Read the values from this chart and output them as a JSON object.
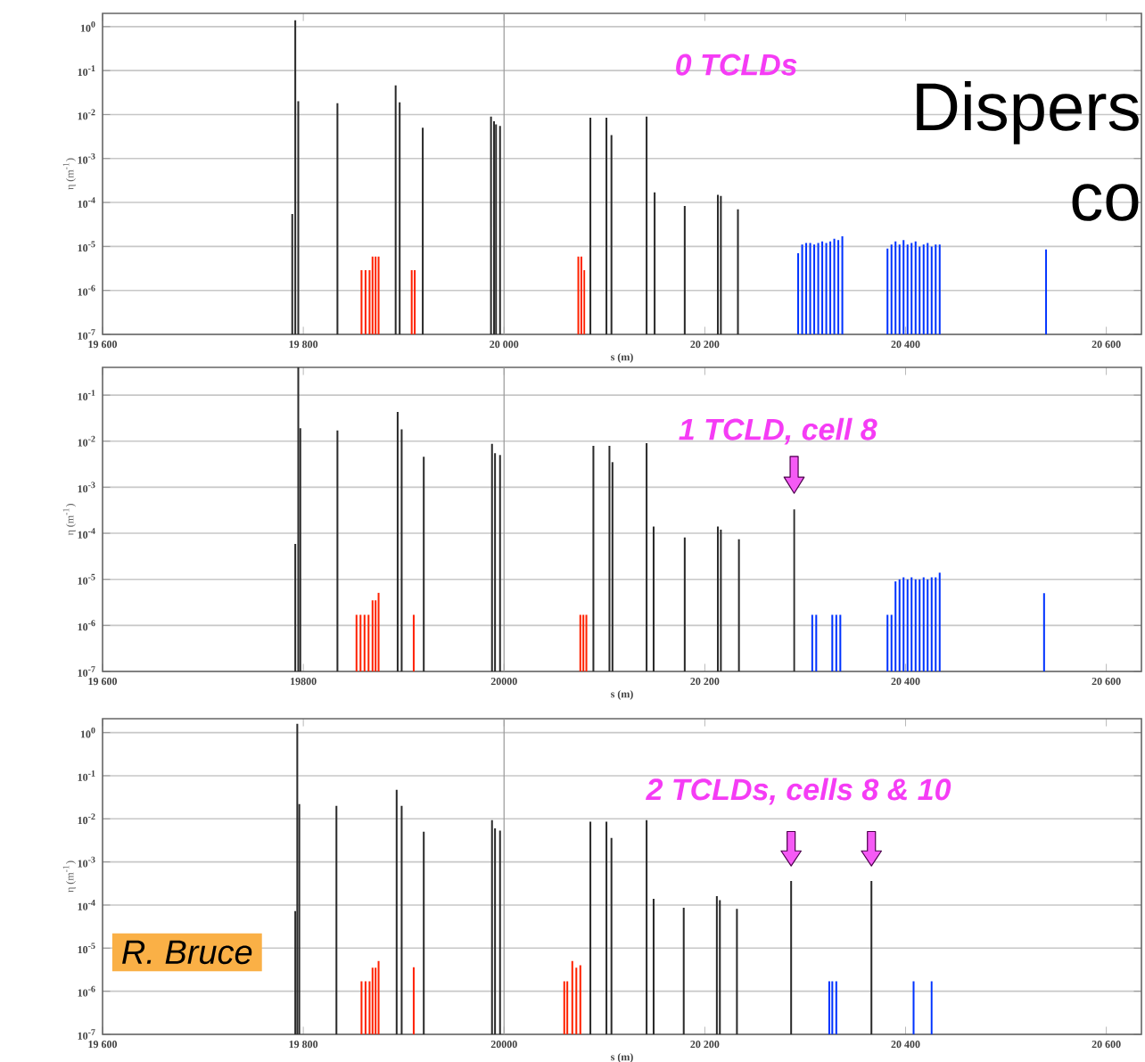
{
  "chart_data": [
    {
      "type": "bar",
      "title": "0 TCLDs",
      "xlabel": "s (m)",
      "ylabel": "η (m$^{-1}$)",
      "log": "y",
      "grid": "y",
      "xlim": [
        19600,
        20635
      ],
      "xticks": [
        {
          "value": 19600,
          "label": "19 600"
        },
        {
          "value": 19800,
          "label": "19 800"
        },
        {
          "value": 20000,
          "label": "20 000"
        },
        {
          "value": 20200,
          "label": "20 200"
        },
        {
          "value": 20400,
          "label": "20 400"
        },
        {
          "value": 20600,
          "label": "20 600"
        }
      ],
      "ylim": [
        1e-07,
        2
      ],
      "yticks": [
        {
          "value": 1,
          "label": "10$^{0}$"
        },
        {
          "value": 0.1,
          "label": "10$^{-1}$"
        },
        {
          "value": 0.01,
          "label": "10$^{-2}$"
        },
        {
          "value": 0.001,
          "label": "10$^{-3}$"
        },
        {
          "value": 0.0001,
          "label": "10$^{-4}$"
        },
        {
          "value": 1e-05,
          "label": "10$^{-5}$"
        },
        {
          "value": 1e-06,
          "label": "10$^{-6}$"
        },
        {
          "value": 1e-07,
          "label": "10$^{-7}$"
        }
      ],
      "ref_lines": [
        {
          "axis": "x",
          "value": 20000,
          "color": "#999999"
        }
      ],
      "annotations": [
        "Dispers",
        "co"
      ],
      "series": [
        {
          "color": "#2b2b2b",
          "x": [
            19789,
            19792,
            19795,
            19834,
            19892,
            19896,
            19919,
            19987,
            19990,
            19992,
            19996,
            20086,
            20102,
            20107,
            20142,
            20150,
            20180,
            20213,
            20216,
            20233
          ],
          "values": [
            5.5e-05,
            1.4,
            0.02,
            0.018,
            0.046,
            0.019,
            0.005,
            0.009,
            0.007,
            0.006,
            0.0055,
            0.0085,
            0.0085,
            0.0034,
            0.009,
            0.00017,
            8.3e-05,
            0.00015,
            0.00014,
            7e-05
          ]
        },
        {
          "color": "#ff2200",
          "x": [
            19858,
            19862,
            19866,
            19869,
            19872,
            19875,
            19908,
            19911,
            20074,
            20077,
            20080
          ],
          "values": [
            2.9e-06,
            2.9e-06,
            2.9e-06,
            5.9e-06,
            5.9e-06,
            5.9e-06,
            2.9e-06,
            2.9e-06,
            5.9e-06,
            5.9e-06,
            2.9e-06
          ]
        },
        {
          "color": "#0033ff",
          "x": [
            20293,
            20297,
            20301,
            20305,
            20309,
            20313,
            20317,
            20321,
            20325,
            20329,
            20333,
            20337,
            20382,
            20386,
            20390,
            20394,
            20398,
            20402,
            20406,
            20410,
            20414,
            20418,
            20422,
            20426,
            20430,
            20434,
            20540
          ],
          "values": [
            7e-06,
            1.1e-05,
            1.2e-05,
            1.2e-05,
            1.1e-05,
            1.2e-05,
            1.3e-05,
            1.2e-05,
            1.3e-05,
            1.5e-05,
            1.4e-05,
            1.7e-05,
            9e-06,
            1.1e-05,
            1.3e-05,
            1.1e-05,
            1.4e-05,
            1.1e-05,
            1.2e-05,
            1.3e-05,
            1e-05,
            1.1e-05,
            1.2e-05,
            1e-05,
            1.1e-05,
            1.1e-05,
            8.5e-06
          ]
        }
      ]
    },
    {
      "type": "bar",
      "title": "1 TCLD, cell 8",
      "xlabel": "s (m)",
      "ylabel": "η (m$^{-1}$)",
      "log": "y",
      "grid": "y",
      "xlim": [
        19600,
        20635
      ],
      "xticks": [
        {
          "value": 19600,
          "label": "19 600"
        },
        {
          "value": 19800,
          "label": "19800"
        },
        {
          "value": 20000,
          "label": "20000"
        },
        {
          "value": 20200,
          "label": "20 200"
        },
        {
          "value": 20400,
          "label": "20 400"
        },
        {
          "value": 20600,
          "label": "20 600"
        }
      ],
      "ylim": [
        1e-07,
        0.4
      ],
      "yticks": [
        {
          "value": 0.1,
          "label": "10$^{-1}$"
        },
        {
          "value": 0.01,
          "label": "10$^{-2}$"
        },
        {
          "value": 0.001,
          "label": "10$^{-3}$"
        },
        {
          "value": 0.0001,
          "label": "10$^{-4}$"
        },
        {
          "value": 1e-05,
          "label": "10$^{-5}$"
        },
        {
          "value": 1e-06,
          "label": "10$^{-6}$"
        },
        {
          "value": 1e-07,
          "label": "10$^{-7}$"
        }
      ],
      "ref_lines": [
        {
          "axis": "x",
          "value": 20000,
          "color": "#999999"
        }
      ],
      "series": [
        {
          "color": "#2b2b2b",
          "x": [
            19792,
            19795,
            19797,
            19834,
            19894,
            19898,
            19920,
            19988,
            19991,
            19996,
            20089,
            20105,
            20108,
            20142,
            20149,
            20180,
            20213,
            20216,
            20234
          ],
          "values": [
            5.9e-05,
            0.4,
            0.019,
            0.017,
            0.043,
            0.018,
            0.0046,
            0.0087,
            0.0055,
            0.005,
            0.0079,
            0.0079,
            0.0035,
            0.009,
            0.00014,
            8.1e-05,
            0.00014,
            0.00012,
            7.4e-05
          ]
        },
        {
          "color": "#ff2200",
          "x": [
            19853,
            19857,
            19861,
            19865,
            19869,
            19872,
            19875,
            19910,
            20076,
            20079,
            20082
          ],
          "values": [
            1.7e-06,
            1.7e-06,
            1.7e-06,
            1.7e-06,
            3.5e-06,
            3.5e-06,
            5.1e-06,
            1.7e-06,
            1.7e-06,
            1.7e-06,
            1.7e-06
          ]
        },
        {
          "color": "#0033ff",
          "x": [
            20307,
            20311,
            20327,
            20331,
            20335,
            20382,
            20386,
            20390,
            20394,
            20398,
            20402,
            20406,
            20410,
            20414,
            20418,
            20422,
            20426,
            20430,
            20434,
            20538
          ],
          "values": [
            1.7e-06,
            1.7e-06,
            1.7e-06,
            1.7e-06,
            1.7e-06,
            1.7e-06,
            1.7e-06,
            9e-06,
            1e-05,
            1.1e-05,
            1e-05,
            1.1e-05,
            1e-05,
            1e-05,
            1.1e-05,
            1e-05,
            1.1e-05,
            1.1e-05,
            1.4e-05,
            5e-06
          ]
        },
        {
          "color": "#2b2b2b",
          "x": [
            20289
          ],
          "values": [
            0.00033
          ]
        }
      ]
    },
    {
      "type": "bar",
      "title": "2 TCLDs, cells 8 & 10",
      "xlabel": "s (m)",
      "ylabel": "η (m$^{-1}$)",
      "log": "y",
      "grid": "y",
      "xlim": [
        19600,
        20635
      ],
      "xticks": [
        {
          "value": 19600,
          "label": "19 600"
        },
        {
          "value": 19800,
          "label": "19 800"
        },
        {
          "value": 20000,
          "label": "20000"
        },
        {
          "value": 20200,
          "label": "20 200"
        },
        {
          "value": 20400,
          "label": "20 400"
        },
        {
          "value": 20600,
          "label": "20 600"
        }
      ],
      "ylim": [
        1e-07,
        2.1
      ],
      "yticks": [
        {
          "value": 1,
          "label": "10$^{0}$"
        },
        {
          "value": 0.1,
          "label": "10$^{-1}$"
        },
        {
          "value": 0.01,
          "label": "10$^{-2}$"
        },
        {
          "value": 0.001,
          "label": "10$^{-3}$"
        },
        {
          "value": 0.0001,
          "label": "10$^{-4}$"
        },
        {
          "value": 1e-05,
          "label": "10$^{-5}$"
        },
        {
          "value": 1e-06,
          "label": "10$^{-6}$"
        },
        {
          "value": 1e-07,
          "label": "10$^{-7}$"
        }
      ],
      "ref_lines": [
        {
          "axis": "x",
          "value": 20000,
          "color": "#999999"
        }
      ],
      "annotations": [
        "R. Bruce"
      ],
      "series": [
        {
          "color": "#2b2b2b",
          "x": [
            19792,
            19794,
            19796,
            19833,
            19893,
            19898,
            19920,
            19988,
            19991,
            19996,
            20086,
            20102,
            20107,
            20142,
            20149,
            20179,
            20212,
            20215,
            20232
          ],
          "values": [
            7.2e-05,
            1.6,
            0.022,
            0.02,
            0.047,
            0.02,
            0.005,
            0.0093,
            0.006,
            0.0053,
            0.0086,
            0.0086,
            0.0036,
            0.0093,
            0.00014,
            8.7e-05,
            0.00016,
            0.00013,
            8.2e-05
          ]
        },
        {
          "color": "#ff2200",
          "x": [
            19858,
            19862,
            19866,
            19869,
            19872,
            19875,
            19910,
            20060,
            20063,
            20068,
            20072,
            20076
          ],
          "values": [
            1.7e-06,
            1.7e-06,
            1.7e-06,
            3.5e-06,
            3.5e-06,
            5e-06,
            3.6e-06,
            1.7e-06,
            1.7e-06,
            5e-06,
            3.5e-06,
            4e-06
          ]
        },
        {
          "color": "#0033ff",
          "x": [
            20324,
            20327,
            20331,
            20408,
            20426
          ],
          "values": [
            1.7e-06,
            1.7e-06,
            1.7e-06,
            1.7e-06,
            1.7e-06
          ]
        },
        {
          "color": "#2b2b2b",
          "x": [
            20286,
            20366
          ],
          "values": [
            0.00036,
            0.00036
          ]
        }
      ]
    }
  ]
}
